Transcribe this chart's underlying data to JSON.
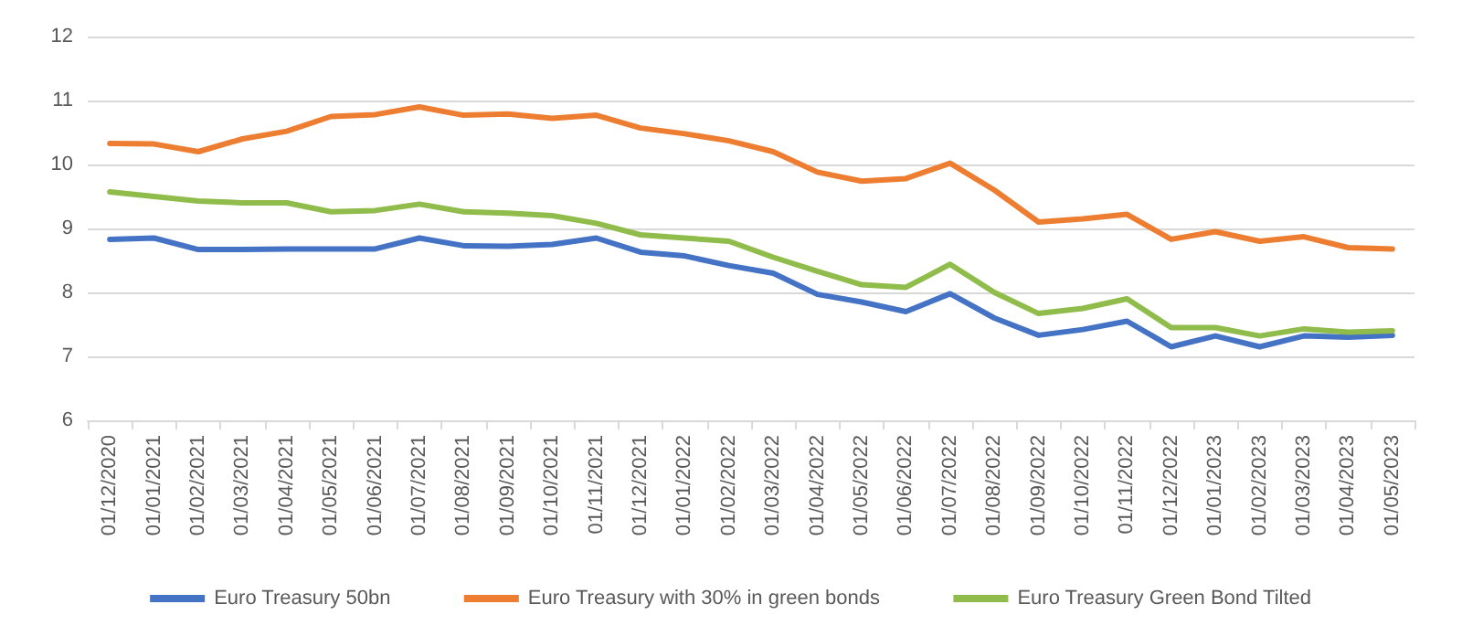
{
  "chart_data": {
    "type": "line",
    "categories": [
      "01/12/2020",
      "01/01/2021",
      "01/02/2021",
      "01/03/2021",
      "01/04/2021",
      "01/05/2021",
      "01/06/2021",
      "01/07/2021",
      "01/08/2021",
      "01/09/2021",
      "01/10/2021",
      "01/11/2021",
      "01/12/2021",
      "01/01/2022",
      "01/02/2022",
      "01/03/2022",
      "01/04/2022",
      "01/05/2022",
      "01/06/2022",
      "01/07/2022",
      "01/08/2022",
      "01/09/2022",
      "01/10/2022",
      "01/11/2022",
      "01/12/2022",
      "01/01/2023",
      "01/02/2023",
      "01/03/2023",
      "01/04/2023",
      "01/05/2023"
    ],
    "series": [
      {
        "name": "Euro Treasury 50bn",
        "color": "#4472c4",
        "values": [
          8.83,
          8.85,
          8.67,
          8.67,
          8.68,
          8.68,
          8.68,
          8.85,
          8.73,
          8.72,
          8.75,
          8.85,
          8.63,
          8.57,
          8.42,
          8.3,
          7.97,
          7.85,
          7.7,
          7.98,
          7.6,
          7.33,
          7.42,
          7.55,
          7.15,
          7.32,
          7.15,
          7.32,
          7.3,
          7.33
        ]
      },
      {
        "name": "Euro Treasury with 30% in green bonds",
        "color": "#ed7d31",
        "values": [
          10.33,
          10.32,
          10.2,
          10.4,
          10.52,
          10.75,
          10.78,
          10.9,
          10.77,
          10.79,
          10.72,
          10.77,
          10.57,
          10.48,
          10.37,
          10.2,
          9.88,
          9.74,
          9.78,
          10.02,
          9.6,
          9.1,
          9.15,
          9.22,
          8.83,
          8.95,
          8.8,
          8.87,
          8.7,
          8.68
        ]
      },
      {
        "name": "Euro Treasury Green Bond Tilted",
        "color": "#8fbc4a",
        "values": [
          9.57,
          9.5,
          9.43,
          9.4,
          9.4,
          9.26,
          9.28,
          9.38,
          9.26,
          9.24,
          9.2,
          9.08,
          8.9,
          8.85,
          8.8,
          8.55,
          8.33,
          8.12,
          8.08,
          8.44,
          8.0,
          7.67,
          7.75,
          7.9,
          7.45,
          7.45,
          7.32,
          7.43,
          7.38,
          7.4
        ]
      }
    ],
    "ylim": [
      6,
      12
    ],
    "yticks": [
      6,
      7,
      8,
      9,
      10,
      11,
      12
    ],
    "grid": "y",
    "legend": "bottom",
    "marker": "none",
    "line_style": "solid"
  }
}
